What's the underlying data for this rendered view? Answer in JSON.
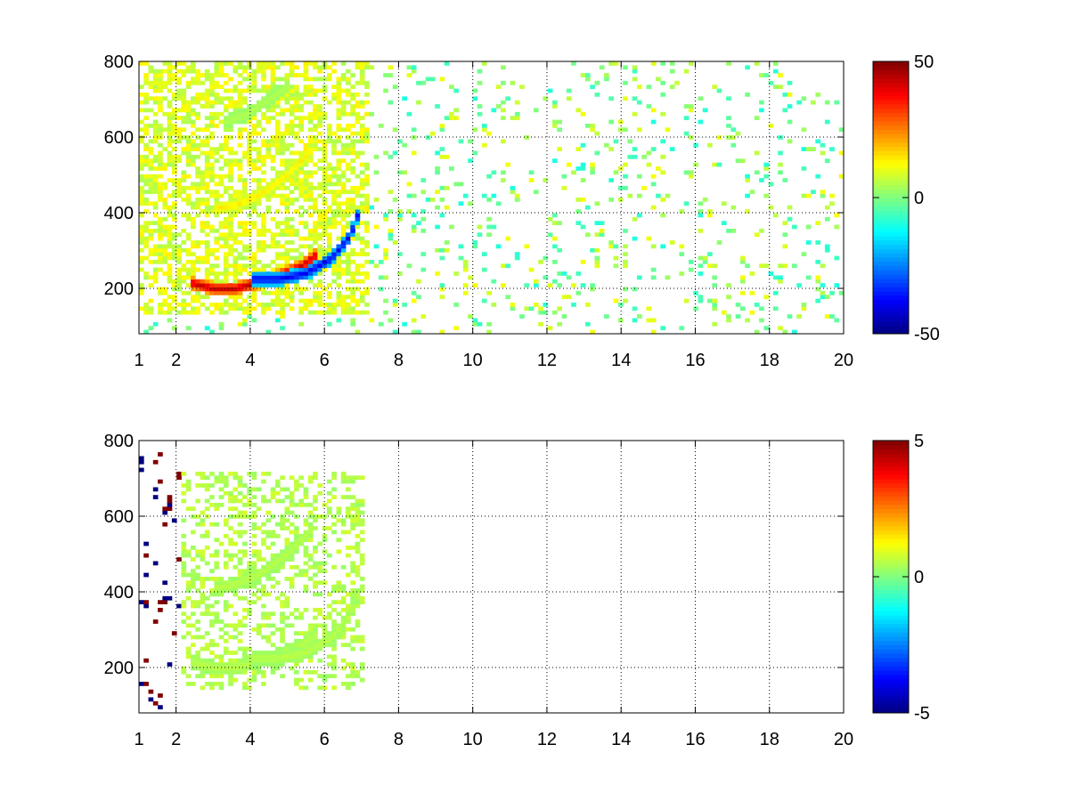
{
  "figure": {
    "background": "#ffffff",
    "colormap": "jet"
  },
  "chart_data": [
    {
      "type": "heatmap",
      "title": "",
      "xlabel": "",
      "ylabel": "",
      "xlim": [
        1,
        20
      ],
      "ylim": [
        80,
        800
      ],
      "xticks": [
        1,
        2,
        4,
        6,
        8,
        10,
        12,
        14,
        16,
        18,
        20
      ],
      "xtick_labels": [
        "1",
        "2",
        "4",
        "6",
        "8",
        "10",
        "12",
        "14",
        "16",
        "18",
        "20"
      ],
      "yticks": [
        200,
        400,
        600,
        800
      ],
      "ytick_labels": [
        "200",
        "400",
        "600",
        "800"
      ],
      "grid": true,
      "colorbar": {
        "clim": [
          -50,
          50
        ],
        "ticks": [
          50,
          0,
          -50
        ],
        "tick_labels": [
          "50",
          "0",
          "-50"
        ]
      },
      "features": [
        {
          "x": [
            2.4,
            3.0,
            3.6,
            4.2,
            4.8,
            5.4,
            5.8
          ],
          "y": [
            215,
            200,
            200,
            215,
            235,
            260,
            290
          ],
          "value": 45
        },
        {
          "x": [
            4.0,
            4.8,
            5.5,
            6.2,
            6.7,
            7.0
          ],
          "y": [
            225,
            225,
            240,
            280,
            340,
            420
          ],
          "value": -40
        },
        {
          "x": [
            3.0,
            3.6,
            4.3,
            5.0,
            5.7
          ],
          "y": [
            410,
            420,
            450,
            500,
            570
          ],
          "value": 15
        },
        {
          "x": [
            3.3,
            3.9,
            4.5,
            5.1
          ],
          "y": [
            640,
            660,
            700,
            740
          ],
          "value": 5
        }
      ],
      "background_band": {
        "x": [
          1,
          7.2
        ],
        "y": [
          130,
          800
        ],
        "value": 10
      }
    },
    {
      "type": "heatmap",
      "title": "",
      "xlabel": "",
      "ylabel": "",
      "xlim": [
        1,
        20
      ],
      "ylim": [
        80,
        800
      ],
      "xticks": [
        1,
        2,
        4,
        6,
        8,
        10,
        12,
        14,
        16,
        18,
        20
      ],
      "xtick_labels": [
        "1",
        "2",
        "4",
        "6",
        "8",
        "10",
        "12",
        "14",
        "16",
        "18",
        "20"
      ],
      "yticks": [
        200,
        400,
        600,
        800
      ],
      "ytick_labels": [
        "200",
        "400",
        "600",
        "800"
      ],
      "grid": true,
      "colorbar": {
        "clim": [
          -5,
          5
        ],
        "ticks": [
          5,
          0,
          -5
        ],
        "tick_labels": [
          "5",
          "0",
          "-5"
        ]
      },
      "features": [
        {
          "x": [
            2.4,
            3.0,
            3.6,
            4.2,
            4.8,
            5.4,
            5.8
          ],
          "y": [
            215,
            200,
            200,
            215,
            235,
            260,
            290
          ],
          "value": 0.6
        },
        {
          "x": [
            4.0,
            4.8,
            5.5,
            6.2,
            6.7,
            7.0
          ],
          "y": [
            225,
            225,
            240,
            280,
            340,
            420
          ],
          "value": 0.6
        },
        {
          "x": [
            3.0,
            3.6,
            4.3,
            5.0,
            5.7
          ],
          "y": [
            410,
            420,
            450,
            500,
            570
          ],
          "value": 0.6
        }
      ],
      "background_band": {
        "x": [
          2.2,
          7.1
        ],
        "y": [
          140,
          720
        ],
        "value": 0.6
      }
    }
  ]
}
